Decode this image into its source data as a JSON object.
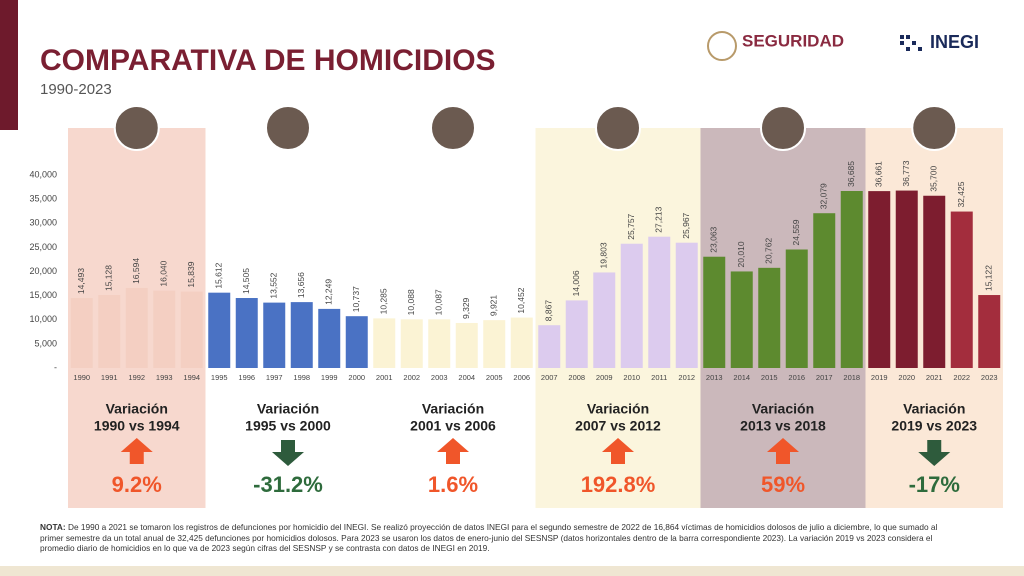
{
  "header": {
    "title": "COMPARATIVA DE HOMICIDIOS",
    "subtitle": "1990-2023",
    "logo_left": "SEGURIDAD",
    "logo_right": "INEGI"
  },
  "chart_data": {
    "type": "bar",
    "categories": [
      "1990",
      "1991",
      "1992",
      "1993",
      "1994",
      "1995",
      "1996",
      "1997",
      "1998",
      "1999",
      "2000",
      "2001",
      "2002",
      "2003",
      "2004",
      "2005",
      "2006",
      "2007",
      "2008",
      "2009",
      "2010",
      "2011",
      "2012",
      "2013",
      "2014",
      "2015",
      "2016",
      "2017",
      "2018",
      "2019",
      "2020",
      "2021",
      "2022",
      "2023"
    ],
    "values": [
      14493,
      15128,
      16594,
      16040,
      15839,
      15612,
      14505,
      13552,
      13656,
      12249,
      10737,
      10285,
      10088,
      10087,
      9329,
      9921,
      10452,
      8867,
      14006,
      19803,
      25757,
      27213,
      25967,
      23063,
      20010,
      20762,
      24559,
      32079,
      36685,
      36661,
      36773,
      35700,
      32425,
      15122
    ],
    "value_labels": [
      "14,493",
      "15,128",
      "16,594",
      "16,040",
      "15,839",
      "15,612",
      "14,505",
      "13,552",
      "13,656",
      "12,249",
      "10,737",
      "10,285",
      "10,088",
      "10,087",
      "9,329",
      "9,921",
      "10,452",
      "8,867",
      "14,006",
      "19,803",
      "25,757",
      "27,213",
      "25,967",
      "23,063",
      "20,010",
      "20,762",
      "24,559",
      "32,079",
      "36,685",
      "36,661",
      "36,773",
      "35,700",
      "32,425",
      "15,122"
    ],
    "bar_colors": [
      "#f4cfc2",
      "#f4cfc2",
      "#f4cfc2",
      "#f4cfc2",
      "#f4cfc2",
      "#4a72c4",
      "#4a72c4",
      "#4a72c4",
      "#4a72c4",
      "#4a72c4",
      "#4a72c4",
      "#fbf3d4",
      "#fbf3d4",
      "#fbf3d4",
      "#fbf3d4",
      "#fbf3d4",
      "#fbf3d4",
      "#dccbee",
      "#dccbee",
      "#dccbee",
      "#dccbee",
      "#dccbee",
      "#dccbee",
      "#5d8a2f",
      "#5d8a2f",
      "#5d8a2f",
      "#5d8a2f",
      "#5d8a2f",
      "#5d8a2f",
      "#7d1d2f",
      "#7d1d2f",
      "#7d1d2f",
      "#a32d3d",
      "#a32d3d"
    ],
    "ylim": [
      0,
      40000
    ],
    "yticks": [
      {
        "value": 0,
        "label": "-"
      },
      {
        "value": 5000,
        "label": "5,000"
      },
      {
        "value": 10000,
        "label": "10,000"
      },
      {
        "value": 15000,
        "label": "15,000"
      },
      {
        "value": 20000,
        "label": "20,000"
      },
      {
        "value": 25000,
        "label": "25,000"
      },
      {
        "value": 30000,
        "label": "30,000"
      },
      {
        "value": 35000,
        "label": "35,000"
      },
      {
        "value": 40000,
        "label": "40,000"
      }
    ],
    "grid": false
  },
  "periods": [
    {
      "label": "Variación",
      "range": "1990 vs 1994",
      "change": "9.2%",
      "direction": "up",
      "background": "#f7d8ce"
    },
    {
      "label": "Variación",
      "range": "1995 vs 2000",
      "change": "-31.2%",
      "direction": "down",
      "background": "#ffffff"
    },
    {
      "label": "Variación",
      "range": "2001 vs 2006",
      "change": "1.6%",
      "direction": "up",
      "background": "#ffffff"
    },
    {
      "label": "Variación",
      "range": "2007 vs 2012",
      "change": "192.8%",
      "direction": "up",
      "background": "#fbf5dd"
    },
    {
      "label": "Variación",
      "range": "2013 vs 2018",
      "change": "59%",
      "direction": "up",
      "background": "#cbb8bb"
    },
    {
      "label": "Variación",
      "range": "2019 vs 2023",
      "change": "-17%",
      "direction": "down",
      "background": "#fbe8d7"
    }
  ],
  "note": {
    "label": "NOTA:",
    "text": "De 1990 a 2021 se tomaron los registros de defunciones por homicidio del INEGI. Se realizó proyección de datos INEGI para el segundo semestre de 2022 de 16,864 víctimas de homicidios dolosos de julio a diciembre, lo que sumado al primer semestre da un total anual de 32,425 defunciones por homicidios dolosos. Para 2023 se usaron los datos de enero-junio del SESNSP (datos horizontales dentro de la barra correspondiente 2023). La variación 2019 vs 2023 considera el promedio diario de homicidios en lo que va de 2023 según cifras del SESNSP y se contrasta con datos de INEGI en 2019."
  }
}
